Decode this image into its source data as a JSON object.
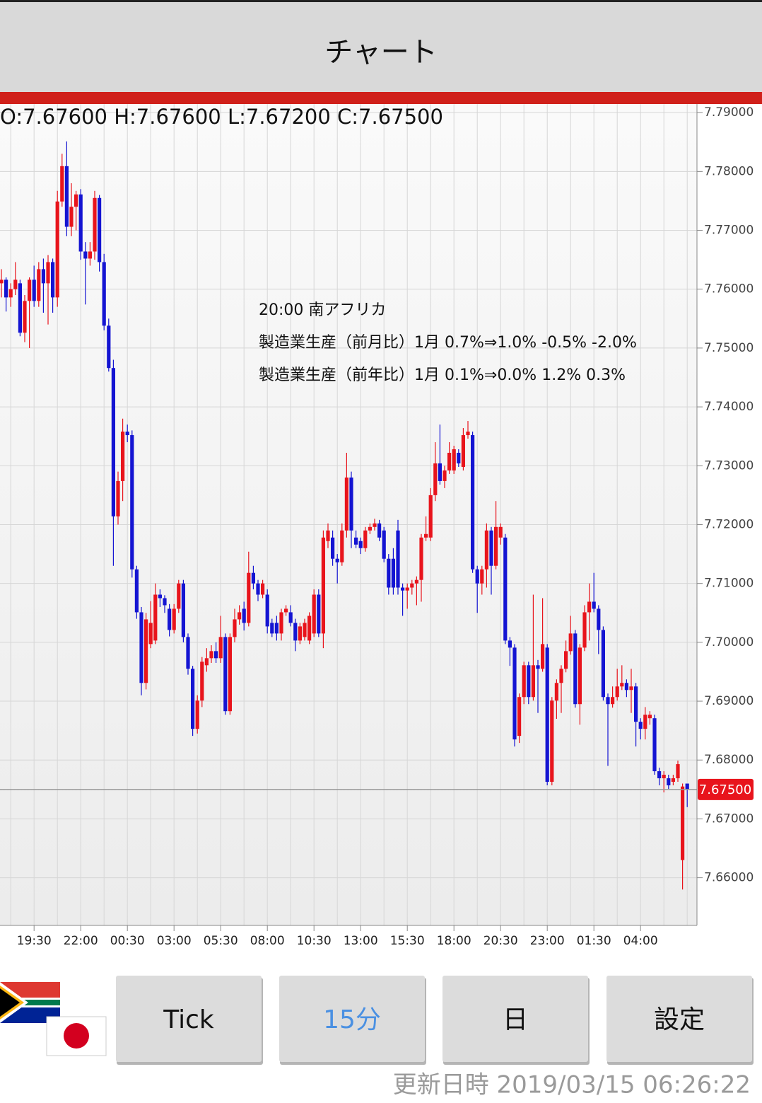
{
  "header": {
    "title": "チャート"
  },
  "chart_data": {
    "type": "candlestick",
    "ohlc_text": "O:7.67600 H:7.67600 L:7.67200 C:7.67500",
    "annotations": [
      "20:00 南アフリカ",
      "製造業生産（前月比）1月 0.7%⇒1.0% -0.5% -2.0%",
      "製造業生産（前年比）1月 0.1%⇒0.0% 1.2% 0.3%"
    ],
    "up_color": "#e8141c",
    "down_color": "#1414d2",
    "grid": true,
    "ylim": [
      7.6519,
      7.7911
    ],
    "yticks": [
      {
        "value": 7.66,
        "label": "7.66000"
      },
      {
        "value": 7.67,
        "label": "7.67000"
      },
      {
        "value": 7.68,
        "label": "7.68000"
      },
      {
        "value": 7.69,
        "label": "7.69000"
      },
      {
        "value": 7.7,
        "label": "7.70000"
      },
      {
        "value": 7.71,
        "label": "7.71000"
      },
      {
        "value": 7.72,
        "label": "7.72000"
      },
      {
        "value": 7.73,
        "label": "7.73000"
      },
      {
        "value": 7.74,
        "label": "7.74000"
      },
      {
        "value": 7.75,
        "label": "7.75000"
      },
      {
        "value": 7.76,
        "label": "7.76000"
      },
      {
        "value": 7.77,
        "label": "7.77000"
      },
      {
        "value": 7.78,
        "label": "7.78000"
      },
      {
        "value": 7.79,
        "label": "7.79000"
      }
    ],
    "last_price": {
      "value": 7.675,
      "label": "7.67500"
    },
    "categories": [
      null,
      null,
      null,
      null,
      null,
      null,
      null,
      "19:30",
      null,
      null,
      null,
      null,
      null,
      null,
      null,
      null,
      null,
      "22:00",
      null,
      null,
      null,
      null,
      null,
      null,
      null,
      null,
      null,
      "00:30",
      null,
      null,
      null,
      null,
      null,
      null,
      null,
      null,
      null,
      "03:00",
      null,
      null,
      null,
      null,
      null,
      null,
      null,
      null,
      null,
      "05:30",
      null,
      null,
      null,
      null,
      null,
      null,
      null,
      null,
      null,
      "08:00",
      null,
      null,
      null,
      null,
      null,
      null,
      null,
      null,
      null,
      "10:30",
      null,
      null,
      null,
      null,
      null,
      null,
      null,
      null,
      null,
      "13:00",
      null,
      null,
      null,
      null,
      null,
      null,
      null,
      null,
      null,
      "15:30",
      null,
      null,
      null,
      null,
      null,
      null,
      null,
      null,
      null,
      "18:00",
      null,
      null,
      null,
      null,
      null,
      null,
      null,
      null,
      null,
      "20:30",
      null,
      null,
      null,
      null,
      null,
      null,
      null,
      null,
      null,
      "23:00",
      null,
      null,
      null,
      null,
      null,
      null,
      null,
      null,
      null,
      "01:30",
      null,
      null,
      null,
      null,
      null,
      null,
      null,
      null,
      null,
      "04:00",
      null,
      null,
      null,
      null,
      null,
      null,
      null,
      null,
      null,
      null
    ],
    "open": [
      7.761,
      7.7616,
      7.7586,
      7.76,
      7.761,
      7.7526,
      7.758,
      7.7616,
      7.758,
      7.7634,
      7.761,
      7.7646,
      7.7586,
      7.7749,
      7.7809,
      7.7706,
      7.774,
      7.7761,
      7.7664,
      7.7652,
      7.7664,
      7.7755,
      7.7646,
      7.7538,
      7.7466,
      7.7214,
      7.7274,
      7.7358,
      7.7352,
      7.7124,
      7.7051,
      7.6931,
      7.6997,
      7.7003,
      7.7081,
      7.7075,
      7.7057,
      7.7021,
      7.7057,
      7.71,
      7.7009,
      7.6955,
      7.6853,
      7.6901,
      7.6961,
      7.6973,
      7.6985,
      7.6973,
      7.7009,
      7.6883,
      7.7009,
      7.7039,
      7.7057,
      7.7033,
      7.7118,
      7.71,
      7.7081,
      7.7081,
      7.7033,
      7.7033,
      7.7015,
      7.7051,
      7.7051,
      7.7033,
      7.7003,
      7.7009,
      7.7003,
      7.7015,
      7.7081,
      7.7015,
      7.7172,
      7.7178,
      7.7142,
      7.7136,
      7.719,
      7.728,
      7.7178,
      7.7172,
      7.716,
      7.719,
      7.7196,
      7.7202,
      7.719,
      7.7142,
      7.7142,
      7.719,
      7.7093,
      7.7088,
      7.7093,
      7.71,
      7.7106,
      7.7178,
      7.7178,
      7.725,
      7.7304,
      7.7274,
      7.7292,
      7.7292,
      7.7322,
      7.7298,
      7.7352,
      7.7352,
      7.7124,
      7.71,
      7.7124,
      7.719,
      7.713,
      7.7178,
      7.7178,
      7.7003,
      7.6991,
      7.6841,
      7.6907,
      7.6961,
      7.6907,
      7.6961,
      7.6955,
      7.6991,
      7.6763,
      7.6901,
      7.6931,
      7.6955,
      7.6985,
      7.7015,
      7.6895,
      7.6991,
      7.7051,
      7.7069,
      7.7057,
      7.7021,
      7.6907,
      7.6895,
      7.6907,
      7.6925,
      7.6931,
      7.6919,
      7.6925,
      7.6865,
      7.6853,
      7.6871,
      7.6871,
      7.6781,
      7.6769,
      7.6769,
      7.6763,
      7.6769,
      7.663,
      7.676
    ],
    "high": [
      7.7634,
      7.762,
      7.761,
      7.7646,
      7.7616,
      7.759,
      7.762,
      7.764,
      7.7646,
      7.7652,
      7.7658,
      7.7652,
      7.7767,
      7.783,
      7.7851,
      7.778,
      7.7767,
      7.777,
      7.768,
      7.768,
      7.7767,
      7.776,
      7.766,
      7.755,
      7.748,
      7.729,
      7.738,
      7.737,
      7.736,
      7.713,
      7.706,
      7.705,
      7.707,
      7.71,
      7.709,
      7.708,
      7.7065,
      7.7065,
      7.7106,
      7.7106,
      7.7015,
      7.696,
      7.691,
      7.6975,
      7.699,
      7.6995,
      7.7,
      7.7045,
      7.7015,
      7.7015,
      7.7057,
      7.7063,
      7.7069,
      7.7154,
      7.713,
      7.7106,
      7.7106,
      7.709,
      7.704,
      7.7045,
      7.7057,
      7.7063,
      7.7063,
      7.704,
      7.7033,
      7.704,
      7.7051,
      7.709,
      7.709,
      7.719,
      7.7202,
      7.719,
      7.715,
      7.7202,
      7.7322,
      7.729,
      7.719,
      7.7178,
      7.7196,
      7.7202,
      7.721,
      7.7208,
      7.7196,
      7.715,
      7.716,
      7.7208,
      7.71,
      7.71,
      7.7106,
      7.7112,
      7.7184,
      7.7214,
      7.7262,
      7.734,
      7.737,
      7.73,
      7.734,
      7.7334,
      7.7328,
      7.7364,
      7.7376,
      7.7358,
      7.713,
      7.713,
      7.7202,
      7.7196,
      7.724,
      7.7202,
      7.7184,
      7.7009,
      7.6997,
      7.6913,
      7.6967,
      7.6967,
      7.7081,
      7.697,
      7.7075,
      7.6997,
      7.6907,
      7.6937,
      7.6961,
      7.7003,
      7.7045,
      7.7021,
      7.6997,
      7.7063,
      7.71,
      7.7118,
      7.7063,
      7.7027,
      7.6913,
      7.6925,
      7.6955,
      7.6961,
      7.6937,
      7.6955,
      7.6931,
      7.6871,
      7.689,
      7.6883,
      7.6877,
      7.6787,
      7.6781,
      7.6775,
      7.6775,
      7.6799,
      7.676,
      7.676
    ],
    "low": [
      7.7586,
      7.7562,
      7.757,
      7.759,
      7.752,
      7.751,
      7.75,
      7.757,
      7.757,
      7.756,
      7.754,
      7.756,
      7.757,
      7.774,
      7.769,
      7.769,
      7.77,
      7.765,
      7.7574,
      7.764,
      7.765,
      7.763,
      7.753,
      7.746,
      7.713,
      7.72,
      7.724,
      7.734,
      7.711,
      7.704,
      7.691,
      7.692,
      7.699,
      7.6997,
      7.706,
      7.705,
      7.701,
      7.7015,
      7.705,
      7.7,
      7.6945,
      7.6841,
      7.6845,
      7.689,
      7.695,
      7.6965,
      7.6965,
      7.6965,
      7.6877,
      7.6877,
      7.7,
      7.703,
      7.702,
      7.7027,
      7.709,
      7.707,
      7.7075,
      7.7015,
      7.7009,
      7.7003,
      7.7003,
      7.7045,
      7.7027,
      7.6985,
      7.6997,
      7.7003,
      7.6997,
      7.7009,
      7.7009,
      7.699,
      7.716,
      7.713,
      7.71,
      7.713,
      7.7178,
      7.716,
      7.716,
      7.715,
      7.7154,
      7.7184,
      7.719,
      7.7172,
      7.7136,
      7.7081,
      7.7081,
      7.7081,
      7.7045,
      7.7057,
      7.7081,
      7.7063,
      7.7069,
      7.7172,
      7.7172,
      7.724,
      7.7268,
      7.7262,
      7.7286,
      7.7286,
      7.7298,
      7.7292,
      7.7346,
      7.7118,
      7.705,
      7.7081,
      7.7093,
      7.7081,
      7.7124,
      7.7166,
      7.6997,
      7.696,
      7.6823,
      7.6829,
      7.6895,
      7.6895,
      7.6901,
      7.688,
      7.695,
      7.6757,
      7.6757,
      7.687,
      7.688,
      7.6949,
      7.6979,
      7.6889,
      7.686,
      7.6985,
      7.7003,
      7.7051,
      7.698,
      7.6901,
      7.679,
      7.6889,
      7.6901,
      7.6919,
      7.6907,
      7.688,
      7.6823,
      7.6835,
      7.6835,
      7.686,
      7.6775,
      7.6757,
      7.6745,
      7.6751,
      7.6757,
      7.6763,
      7.658,
      7.672
    ],
    "close": [
      7.7616,
      7.7586,
      7.76,
      7.7616,
      7.7526,
      7.758,
      7.7616,
      7.758,
      7.7634,
      7.761,
      7.7646,
      7.7586,
      7.7749,
      7.7809,
      7.7706,
      7.774,
      7.7761,
      7.7664,
      7.7652,
      7.7664,
      7.7755,
      7.7646,
      7.7538,
      7.7466,
      7.7214,
      7.7274,
      7.7358,
      7.7352,
      7.7124,
      7.7051,
      7.6931,
      7.7039,
      7.7033,
      7.7081,
      7.7075,
      7.7063,
      7.7021,
      7.7057,
      7.71,
      7.7009,
      7.6955,
      7.6853,
      7.6901,
      7.6967,
      7.6973,
      7.6985,
      7.6973,
      7.7009,
      7.6883,
      7.7009,
      7.7039,
      7.7051,
      7.7033,
      7.7118,
      7.71,
      7.7081,
      7.71,
      7.7027,
      7.7015,
      7.7015,
      7.7051,
      7.7057,
      7.7033,
      7.7003,
      7.7027,
      7.7033,
      7.7045,
      7.7081,
      7.7015,
      7.7178,
      7.719,
      7.7142,
      7.7136,
      7.719,
      7.728,
      7.719,
      7.7166,
      7.716,
      7.719,
      7.7196,
      7.7202,
      7.7178,
      7.7142,
      7.7093,
      7.7093,
      7.7093,
      7.7088,
      7.7093,
      7.71,
      7.7106,
      7.7178,
      7.7184,
      7.725,
      7.7304,
      7.7274,
      7.7292,
      7.7322,
      7.7328,
      7.7304,
      7.7352,
      7.7358,
      7.7124,
      7.71,
      7.7124,
      7.719,
      7.713,
      7.7196,
      7.7196,
      7.7003,
      7.6991,
      7.6835,
      7.6907,
      7.6961,
      7.6907,
      7.6961,
      7.6955,
      7.6997,
      7.6763,
      7.6901,
      7.6931,
      7.6955,
      7.6985,
      7.7015,
      7.6895,
      7.6991,
      7.7051,
      7.7069,
      7.7057,
      7.7021,
      7.6907,
      7.6895,
      7.6907,
      7.6925,
      7.6931,
      7.6919,
      7.6925,
      7.6865,
      7.6853,
      7.6877,
      7.6877,
      7.6781,
      7.6769,
      7.6775,
      7.6757,
      7.6769,
      7.6793,
      7.6755,
      7.675
    ]
  },
  "buttons": [
    "Tick",
    "15分",
    "日",
    "設定"
  ],
  "updated": "更新日時 2019/03/15 06:26:22"
}
